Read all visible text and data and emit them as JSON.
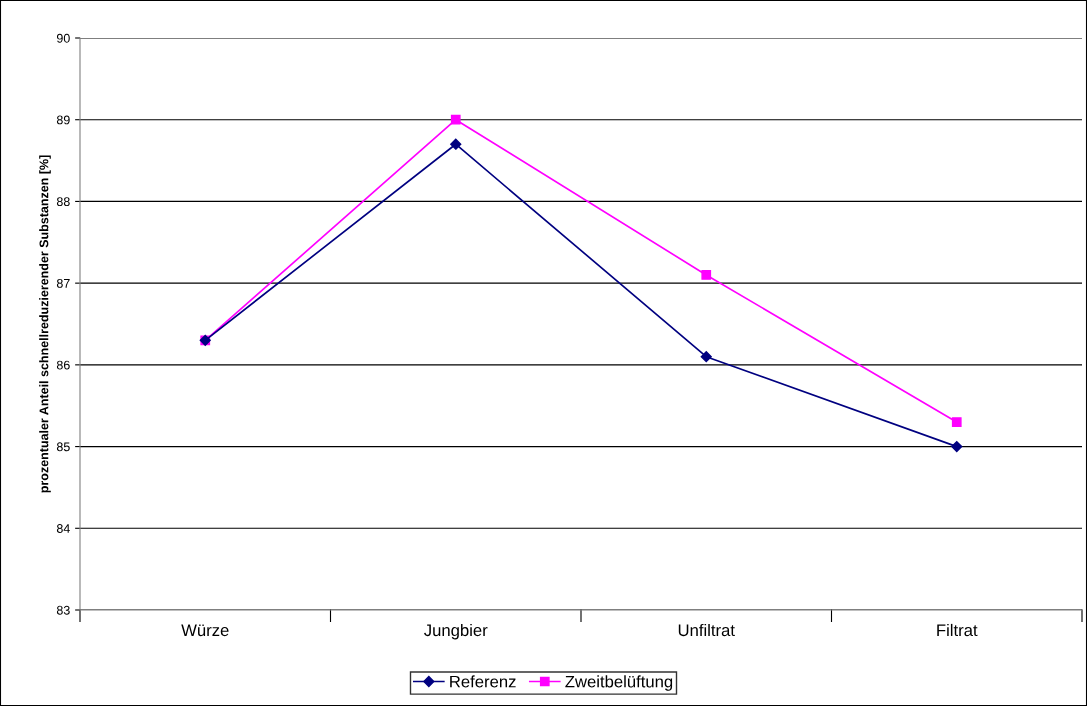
{
  "chart_data": {
    "type": "line",
    "ylabel": "prozentualer Anteil schnellreduzierender Substanzen [%]",
    "categories": [
      "Würze",
      "Jungbier",
      "Unfiltrat",
      "Filtrat"
    ],
    "series": [
      {
        "name": "Referenz",
        "color": "#000080",
        "marker": "diamond",
        "values": [
          86.3,
          88.7,
          86.1,
          85.0
        ]
      },
      {
        "name": "Zweitbelüftung",
        "color": "#ff00ff",
        "marker": "square",
        "values": [
          86.3,
          89.0,
          87.1,
          85.3
        ]
      }
    ],
    "ylim": [
      83,
      90
    ],
    "yticks": [
      83,
      84,
      85,
      86,
      87,
      88,
      89,
      90
    ],
    "grid": "y",
    "legend": "bottom",
    "line_style": "solid"
  }
}
